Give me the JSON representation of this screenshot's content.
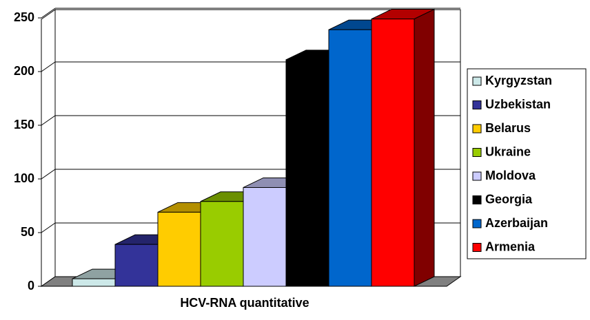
{
  "chart_data": {
    "type": "bar3d",
    "categories": [
      "HCV-RNA quantitative"
    ],
    "series": [
      {
        "name": "Kyrgyzstan",
        "color": "#cce8e8",
        "values": [
          7
        ]
      },
      {
        "name": "Uzbekistan",
        "color": "#333399",
        "values": [
          39
        ]
      },
      {
        "name": "Belarus",
        "color": "#ffcc00",
        "values": [
          69
        ]
      },
      {
        "name": "Ukraine",
        "color": "#99cc00",
        "values": [
          79
        ]
      },
      {
        "name": "Moldova",
        "color": "#ccccff",
        "values": [
          92
        ]
      },
      {
        "name": "Georgia",
        "color": "#000000",
        "values": [
          211
        ]
      },
      {
        "name": "Azerbaijan",
        "color": "#0066cc",
        "values": [
          239
        ]
      },
      {
        "name": "Armenia",
        "color": "#ff0000",
        "values": [
          249
        ]
      }
    ],
    "ylim": [
      0,
      250
    ],
    "yticks": [
      0,
      50,
      100,
      150,
      200,
      250
    ],
    "grid": true,
    "legend": "right"
  }
}
